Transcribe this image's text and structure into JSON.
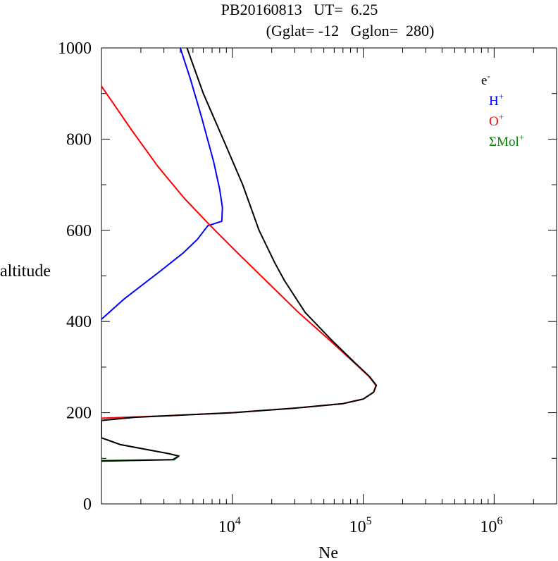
{
  "chart_data": {
    "type": "line",
    "title_line1": "PB20160813   UT=  6.25",
    "title_line2": "(Gglat= -12   Gglon=  280)",
    "xlabel": "Ne",
    "ylabel": "altitude",
    "x_scale": "log",
    "xlim": [
      1000,
      3000000
    ],
    "ylim": [
      0,
      1000
    ],
    "y_ticks": [
      0,
      200,
      400,
      600,
      800,
      1000
    ],
    "y_tick_labels": [
      "0",
      "200",
      "400",
      "600",
      "800",
      "1000"
    ],
    "x_ticks": [
      10000,
      100000,
      1000000
    ],
    "x_tick_labels": [
      {
        "base": "10",
        "exp": "4"
      },
      {
        "base": "10",
        "exp": "5"
      },
      {
        "base": "10",
        "exp": "6"
      }
    ],
    "legend": [
      {
        "base": "e",
        "sup": "-",
        "color": "#000000"
      },
      {
        "base": "H",
        "sup": "+",
        "color": "#0000ff"
      },
      {
        "base": "O",
        "sup": "+",
        "color": "#ff0000"
      },
      {
        "base": "ΣMol",
        "sup": "+",
        "color": "#008000"
      }
    ],
    "series": [
      {
        "name": "ΣMol+",
        "color": "#008000",
        "points": [
          [
            1000,
            95
          ],
          [
            3600,
            97
          ],
          [
            3900,
            105
          ],
          [
            3300,
            110
          ],
          [
            1400,
            130
          ],
          [
            1000,
            145
          ]
        ]
      },
      {
        "name": "H+",
        "color": "#0000ff",
        "points": [
          [
            1000,
            405
          ],
          [
            1500,
            450
          ],
          [
            2800,
            510
          ],
          [
            4200,
            550
          ],
          [
            5400,
            580
          ],
          [
            6500,
            610
          ],
          [
            8300,
            620
          ],
          [
            8400,
            650
          ],
          [
            8000,
            690
          ],
          [
            7200,
            750
          ],
          [
            5800,
            850
          ],
          [
            4800,
            930
          ],
          [
            4000,
            1000
          ]
        ]
      },
      {
        "name": "O+",
        "color": "#ff0000",
        "points": [
          [
            1000,
            188
          ],
          [
            3000,
            193
          ],
          [
            10000,
            200
          ],
          [
            30000,
            210
          ],
          [
            70000,
            220
          ],
          [
            100000,
            230
          ],
          [
            120000,
            245
          ],
          [
            125000,
            260
          ],
          [
            110000,
            280
          ],
          [
            85000,
            310
          ],
          [
            55000,
            360
          ],
          [
            32000,
            420
          ],
          [
            18000,
            490
          ],
          [
            11000,
            550
          ],
          [
            6800,
            610
          ],
          [
            4300,
            670
          ],
          [
            2700,
            740
          ],
          [
            1700,
            820
          ],
          [
            1000,
            916
          ]
        ]
      },
      {
        "name": "e-",
        "color": "#000000",
        "points": [
          [
            1000,
            94
          ],
          [
            3500,
            97
          ],
          [
            3900,
            105
          ],
          [
            3300,
            110
          ],
          [
            1400,
            130
          ],
          [
            1000,
            145
          ],
          [
            1000,
            183
          ],
          [
            1800,
            190
          ],
          [
            10000,
            200
          ],
          [
            30000,
            210
          ],
          [
            70000,
            220
          ],
          [
            100000,
            230
          ],
          [
            120000,
            245
          ],
          [
            126000,
            260
          ],
          [
            111000,
            280
          ],
          [
            86000,
            310
          ],
          [
            57000,
            360
          ],
          [
            36000,
            420
          ],
          [
            25000,
            490
          ],
          [
            21000,
            530
          ],
          [
            16000,
            600
          ],
          [
            12000,
            700
          ],
          [
            8500,
            800
          ],
          [
            6000,
            900
          ],
          [
            4500,
            1000
          ]
        ]
      }
    ]
  }
}
